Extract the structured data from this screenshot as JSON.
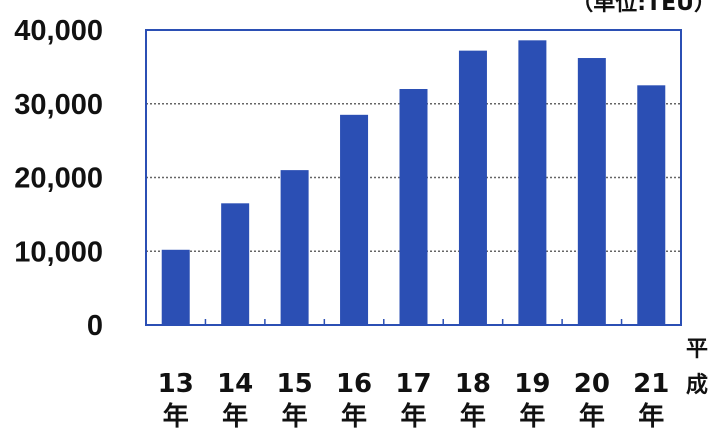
{
  "chart_data": {
    "type": "bar",
    "unit_label": "（単位:TEU）",
    "era_label": [
      "平",
      "成"
    ],
    "categories": [
      {
        "num": "13",
        "suffix": "年"
      },
      {
        "num": "14",
        "suffix": "年"
      },
      {
        "num": "15",
        "suffix": "年"
      },
      {
        "num": "16",
        "suffix": "年"
      },
      {
        "num": "17",
        "suffix": "年"
      },
      {
        "num": "18",
        "suffix": "年"
      },
      {
        "num": "19",
        "suffix": "年"
      },
      {
        "num": "20",
        "suffix": "年"
      },
      {
        "num": "21",
        "suffix": "年"
      }
    ],
    "values": [
      10200,
      16500,
      21000,
      28500,
      32000,
      37200,
      38600,
      36200,
      32500
    ],
    "ylim": [
      0,
      40000
    ],
    "yticks": [
      {
        "value": 0,
        "label": "0"
      },
      {
        "value": 10000,
        "label": "10,000"
      },
      {
        "value": 20000,
        "label": "20,000"
      },
      {
        "value": 30000,
        "label": "30,000"
      },
      {
        "value": 40000,
        "label": "40,000"
      }
    ],
    "grid": true,
    "colors": {
      "bar": "#2b4fb4",
      "frame": "#2b4fb4",
      "grid": "#666666"
    }
  }
}
